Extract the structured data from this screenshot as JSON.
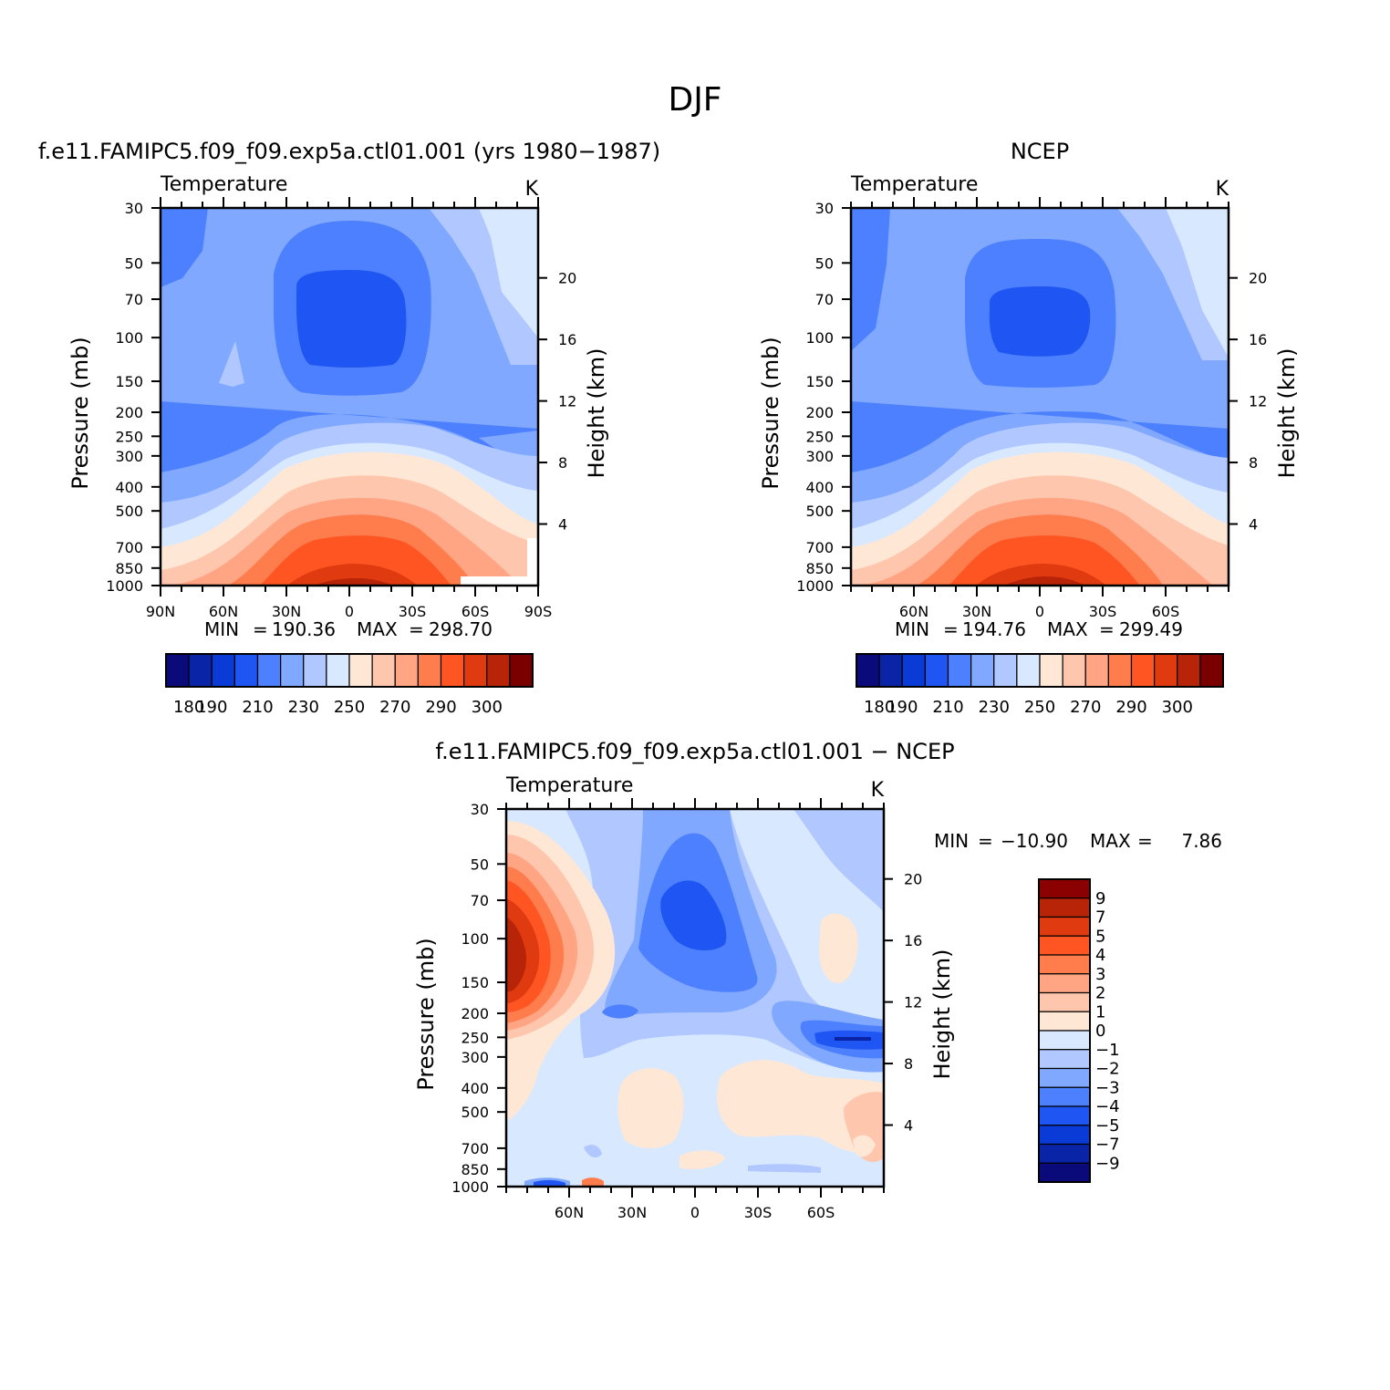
{
  "figure": {
    "title": "DJF"
  },
  "chart_data": [
    {
      "type": "heatmap",
      "subtitle": "f.e11.FAMIPC5.f09_f09.exp5a.ctl01.001 (yrs 1980−1987)",
      "left_label": "Temperature",
      "units": "K",
      "ylabel": "Pressure (mb)",
      "ylabel_right": "Height (km)",
      "x_ticks": [
        "90N",
        "60N",
        "30N",
        "0",
        "30S",
        "60S",
        "90S"
      ],
      "x_tick_values": [
        90,
        60,
        30,
        0,
        -30,
        -60,
        -90
      ],
      "xlim": [
        90,
        -90
      ],
      "y_ticks": [
        "30",
        "50",
        "70",
        "100",
        "150",
        "200",
        "250",
        "300",
        "400",
        "500",
        "700",
        "850",
        "1000"
      ],
      "y_tick_values": [
        30,
        50,
        70,
        100,
        150,
        200,
        250,
        300,
        400,
        500,
        700,
        850,
        1000
      ],
      "ylim": [
        1000,
        30
      ],
      "y_scale": "log",
      "height_ticks": [
        "20",
        "16",
        "12",
        "8",
        "4"
      ],
      "min_label": "MIN",
      "max_label": "MAX",
      "min": "190.36",
      "max": "298.70",
      "colorbar_orientation": "horizontal",
      "colorbar_ticks": [
        "180",
        "190",
        "210",
        "230",
        "250",
        "270",
        "290",
        "300"
      ],
      "colors": [
        "#0a0a7a",
        "#0a24a8",
        "#0a3bd6",
        "#1f55f2",
        "#4c80ff",
        "#80a8ff",
        "#b0c8ff",
        "#d8e8ff",
        "#ffe7d6",
        "#ffc6ae",
        "#ffa584",
        "#ff7c4c",
        "#ff5522",
        "#e03a10",
        "#b82408",
        "#7a0000"
      ]
    },
    {
      "type": "heatmap",
      "subtitle": "NCEP",
      "left_label": "Temperature",
      "units": "K",
      "ylabel": "Pressure (mb)",
      "ylabel_right": "Height (km)",
      "x_ticks": [
        "60N",
        "30N",
        "0",
        "30S",
        "60S"
      ],
      "x_tick_values": [
        60,
        30,
        0,
        -30,
        -60
      ],
      "xlim": [
        90,
        -90
      ],
      "y_ticks": [
        "30",
        "50",
        "70",
        "100",
        "150",
        "200",
        "250",
        "300",
        "400",
        "500",
        "700",
        "850",
        "1000"
      ],
      "y_tick_values": [
        30,
        50,
        70,
        100,
        150,
        200,
        250,
        300,
        400,
        500,
        700,
        850,
        1000
      ],
      "ylim": [
        1000,
        30
      ],
      "y_scale": "log",
      "height_ticks": [
        "20",
        "16",
        "12",
        "8",
        "4"
      ],
      "min_label": "MIN",
      "max_label": "MAX",
      "min": "194.76",
      "max": "299.49",
      "colorbar_orientation": "horizontal",
      "colorbar_ticks": [
        "180",
        "190",
        "210",
        "230",
        "250",
        "270",
        "290",
        "300"
      ],
      "colors": [
        "#0a0a7a",
        "#0a24a8",
        "#0a3bd6",
        "#1f55f2",
        "#4c80ff",
        "#80a8ff",
        "#b0c8ff",
        "#d8e8ff",
        "#ffe7d6",
        "#ffc6ae",
        "#ffa584",
        "#ff7c4c",
        "#ff5522",
        "#e03a10",
        "#b82408",
        "#7a0000"
      ]
    },
    {
      "type": "heatmap",
      "subtitle": "f.e11.FAMIPC5.f09_f09.exp5a.ctl01.001 − NCEP",
      "left_label": "Temperature",
      "units": "K",
      "ylabel": "Pressure (mb)",
      "ylabel_right": "Height (km)",
      "x_ticks": [
        "60N",
        "30N",
        "0",
        "30S",
        "60S"
      ],
      "x_tick_values": [
        60,
        30,
        0,
        -30,
        -60
      ],
      "xlim": [
        90,
        -90
      ],
      "y_ticks": [
        "30",
        "50",
        "70",
        "100",
        "150",
        "200",
        "250",
        "300",
        "400",
        "500",
        "700",
        "850",
        "1000"
      ],
      "y_tick_values": [
        30,
        50,
        70,
        100,
        150,
        200,
        250,
        300,
        400,
        500,
        700,
        850,
        1000
      ],
      "ylim": [
        1000,
        30
      ],
      "y_scale": "log",
      "height_ticks": [
        "20",
        "16",
        "12",
        "8",
        "4"
      ],
      "min_label": "MIN",
      "max_label": "MAX",
      "min": "−10.90",
      "max": "7.86",
      "colorbar_orientation": "vertical",
      "colorbar_ticks": [
        "9",
        "7",
        "5",
        "4",
        "3",
        "2",
        "1",
        "0",
        "−1",
        "−2",
        "−3",
        "−4",
        "−5",
        "−7",
        "−9"
      ],
      "colors": [
        "#8b0000",
        "#b82408",
        "#e03a10",
        "#ff5522",
        "#ff7c4c",
        "#ffa584",
        "#ffc6ae",
        "#ffe7d6",
        "#d8e8ff",
        "#b0c8ff",
        "#80a8ff",
        "#4c80ff",
        "#1f55f2",
        "#0a3bd6",
        "#0a24a8",
        "#0a0a7a"
      ]
    }
  ]
}
